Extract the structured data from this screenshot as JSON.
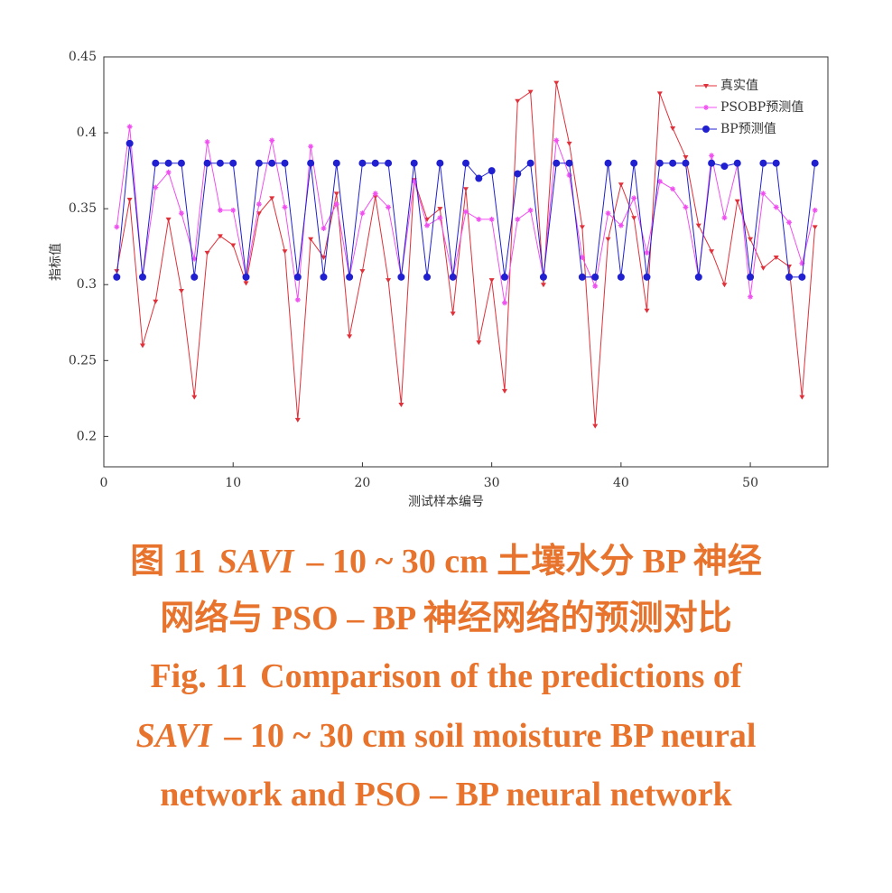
{
  "chart_data": {
    "type": "line",
    "x_label": "测试样本编号",
    "y_label": "指标值",
    "x": [
      1,
      2,
      3,
      4,
      5,
      6,
      7,
      8,
      9,
      10,
      11,
      12,
      13,
      14,
      15,
      16,
      17,
      18,
      19,
      20,
      21,
      22,
      23,
      24,
      25,
      26,
      27,
      28,
      29,
      30,
      31,
      32,
      33,
      34,
      35,
      36,
      37,
      38,
      39,
      40,
      41,
      42,
      43,
      44,
      45,
      46,
      47,
      48,
      49,
      50,
      51,
      52,
      53,
      54,
      55
    ],
    "series": [
      {
        "name": "真实值",
        "color": "#e0303a",
        "marker": "triangle",
        "values": [
          0.309,
          0.356,
          0.26,
          0.289,
          0.343,
          0.296,
          0.226,
          0.321,
          0.332,
          0.326,
          0.301,
          0.347,
          0.357,
          0.322,
          0.211,
          0.33,
          0.318,
          0.36,
          0.266,
          0.309,
          0.358,
          0.303,
          0.221,
          0.369,
          0.343,
          0.35,
          0.281,
          0.363,
          0.262,
          0.303,
          0.23,
          0.421,
          0.427,
          0.3,
          0.433,
          0.393,
          0.338,
          0.207,
          0.33,
          0.366,
          0.344,
          0.283,
          0.426,
          0.403,
          0.384,
          0.339,
          0.322,
          0.3,
          0.355,
          0.33,
          0.311,
          0.318,
          0.312,
          0.226,
          0.338
        ]
      },
      {
        "name": "PSOBP预测值",
        "color": "#f050f0",
        "marker": "star",
        "values": [
          0.338,
          0.404,
          0.305,
          0.364,
          0.374,
          0.347,
          0.317,
          0.394,
          0.349,
          0.349,
          0.305,
          0.353,
          0.395,
          0.351,
          0.29,
          0.391,
          0.337,
          0.353,
          0.305,
          0.347,
          0.36,
          0.351,
          0.305,
          0.368,
          0.339,
          0.344,
          0.305,
          0.348,
          0.343,
          0.343,
          0.288,
          0.343,
          0.349,
          0.305,
          0.395,
          0.372,
          0.318,
          0.299,
          0.347,
          0.339,
          0.357,
          0.321,
          0.368,
          0.363,
          0.351,
          0.305,
          0.385,
          0.344,
          0.379,
          0.292,
          0.36,
          0.351,
          0.341,
          0.314,
          0.349
        ]
      },
      {
        "name": "BP预测值",
        "color": "#2020d0",
        "marker": "circle",
        "values": [
          0.305,
          0.393,
          0.305,
          0.38,
          0.38,
          0.38,
          0.305,
          0.38,
          0.38,
          0.38,
          0.305,
          0.38,
          0.38,
          0.38,
          0.305,
          0.38,
          0.305,
          0.38,
          0.305,
          0.38,
          0.38,
          0.38,
          0.305,
          0.38,
          0.305,
          0.38,
          0.305,
          0.38,
          0.37,
          0.375,
          0.305,
          0.373,
          0.38,
          0.305,
          0.38,
          0.38,
          0.305,
          0.305,
          0.38,
          0.305,
          0.38,
          0.305,
          0.38,
          0.38,
          0.38,
          0.305,
          0.38,
          0.378,
          0.38,
          0.305,
          0.38,
          0.38,
          0.305,
          0.305,
          0.38
        ]
      }
    ],
    "xlim": [
      0,
      56
    ],
    "xticks": [
      0,
      10,
      20,
      30,
      40,
      50
    ],
    "ylim": [
      0.18,
      0.45
    ],
    "yticks": [
      0.2,
      0.25,
      0.3,
      0.35,
      0.4,
      0.45
    ],
    "legend": "upper-right"
  },
  "caption": [
    [
      {
        "text": "图 11"
      },
      {
        "text": "SAVI",
        "italic": true
      },
      {
        "text": "– 10 ~ 30 cm 土壤水分 BP 神经"
      }
    ],
    [
      {
        "text": "网络与 PSO – BP 神经网络的预测对比"
      }
    ],
    [
      {
        "text": "Fig. 11"
      },
      {
        "text": "Comparison of the predictions of"
      }
    ],
    [
      {
        "text": "SAVI",
        "italic": true
      },
      {
        "text": "– 10 ~ 30 cm soil moisture BP neural"
      }
    ],
    [
      {
        "text": "network and PSO – BP neural network"
      }
    ]
  ]
}
